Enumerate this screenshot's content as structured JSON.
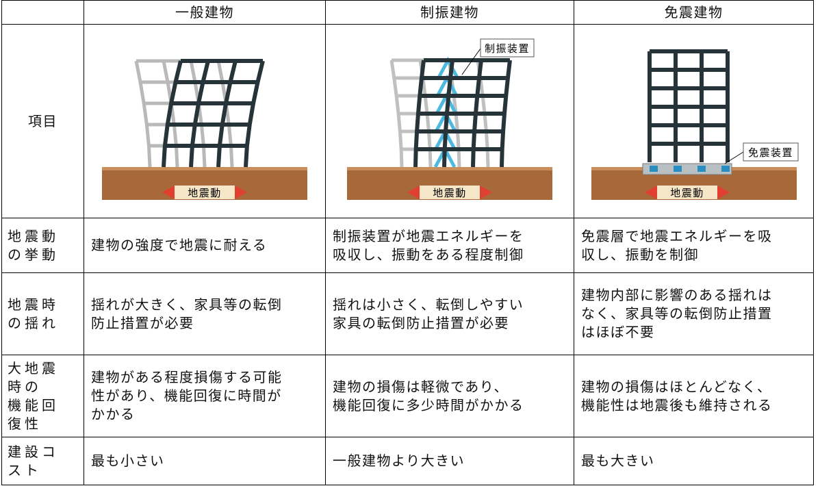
{
  "table": {
    "header": [
      "一般建物",
      "制振建物",
      "免震建物"
    ],
    "image_row": {
      "label": "項目",
      "ground_labels": [
        "地震動",
        "地震動",
        "地震動"
      ],
      "damper_label": "制振装置",
      "isolator_label": "免震装置"
    },
    "rows": [
      {
        "label": [
          "地震動",
          "の挙動"
        ],
        "cells": [
          [
            "建物の強度で地震に耐える"
          ],
          [
            "制振装置が地震エネルギーを",
            "吸収し、振動をある程度制御"
          ],
          [
            "免震層で地震エネルギーを吸",
            "収し、振動を制御"
          ]
        ]
      },
      {
        "label": [
          "地震時",
          "の揺れ"
        ],
        "cells": [
          [
            "揺れが大きく、家具等の転倒",
            "防止措置が必要"
          ],
          [
            "揺れは小さく、転倒しやすい",
            "家具の転倒防止措置が必要"
          ],
          [
            "建物内部に影響のある揺れは",
            "なく、家具等の転倒防止措置",
            "はほぼ不要"
          ]
        ]
      },
      {
        "label": [
          "大地震",
          "時の",
          "機能回",
          "復性"
        ],
        "cells": [
          [
            "建物がある程度損傷する可能",
            "性があり、機能回復に時間が",
            "かかる"
          ],
          [
            "建物の損傷は軽微であり、",
            "機能回復に多少時間がかかる"
          ],
          [
            "建物の損傷はほとんどなく、",
            "機能性は地震後も維持される"
          ]
        ]
      },
      {
        "label": [
          "建設コ",
          "スト"
        ],
        "cells": [
          [
            "最も小さい"
          ],
          [
            "一般建物より大きい"
          ],
          [
            "最も大きい"
          ]
        ]
      }
    ]
  }
}
